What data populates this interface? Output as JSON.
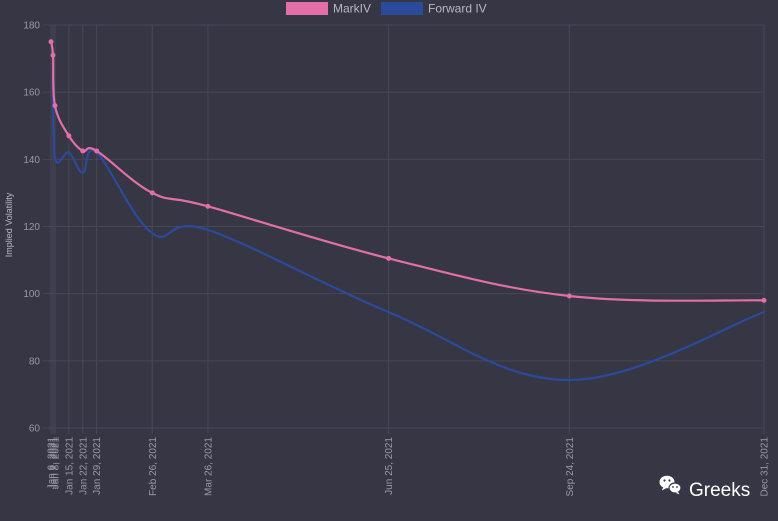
{
  "chart_data": {
    "type": "line",
    "ylabel": "Implied Volatility",
    "ylim": [
      60,
      180
    ],
    "y_ticks": [
      60,
      80,
      100,
      120,
      140,
      160,
      180
    ],
    "grid": true,
    "legend_position": "top-center",
    "categories": [
      "Jan 6, 2021",
      "Jan 7, 2021",
      "Jan 8, 2021",
      "Jan 15, 2021",
      "Jan 22, 2021",
      "Jan 29, 2021",
      "Feb 26, 2021",
      "Mar 26, 2021",
      "Jun 25, 2021",
      "Sep 24, 2021",
      "Dec 31, 2021"
    ],
    "tick_labels": [
      "Jan 6, 2021",
      "Jan 7, 2021",
      "Jan 8, 2021",
      "Jan 15, 2021",
      "Jan 22, 2021",
      "Jan 29, 2021",
      "Feb 26, 2021",
      "Mar 26, 2021",
      "Jun 25, 2021",
      "Sep 24, 2021",
      "Dec 31, 2021"
    ],
    "series": [
      {
        "name": "MarkIV",
        "color": "#e36fa8",
        "values": [
          175,
          171,
          156,
          147,
          142.5,
          142.5,
          130,
          126,
          110.5,
          99.3,
          98
        ]
      },
      {
        "name": "Forward IV",
        "color": "#2b4a9c",
        "values": [
          null,
          167,
          140.5,
          142,
          136,
          142,
          118,
          119,
          94.5,
          74.3,
          94.5
        ]
      }
    ]
  },
  "watermark": {
    "text": "Greeks",
    "icon": "wechat-icon"
  }
}
